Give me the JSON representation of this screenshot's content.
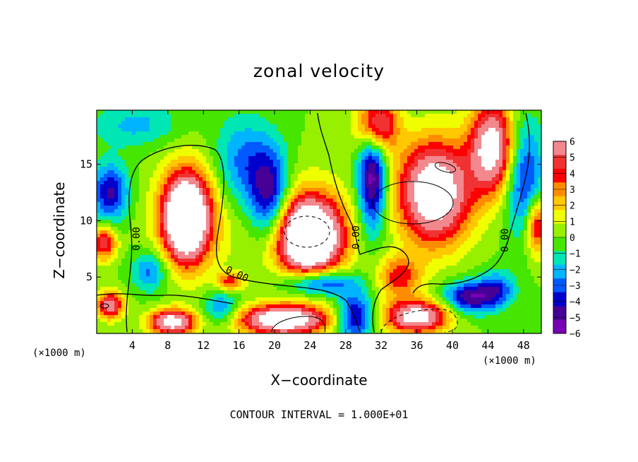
{
  "chart_data": {
    "type": "heatmap",
    "title": "zonal velocity",
    "xlabel": "X−coordinate",
    "ylabel": "Z−coordinate",
    "x_unit_left": "(×1000 m)",
    "x_unit_right": "(×1000 m)",
    "footer": "CONTOUR INTERVAL = 1.000E+01",
    "x_ticks": [
      "4",
      "8",
      "12",
      "16",
      "20",
      "24",
      "28",
      "32",
      "36",
      "40",
      "44",
      "48"
    ],
    "y_ticks": [
      "5",
      "10",
      "15"
    ],
    "xlim": [
      0,
      50
    ],
    "ylim": [
      0,
      19.8
    ],
    "colorbar_labels": [
      "6",
      "5",
      "4",
      "3",
      "2",
      "1",
      "0",
      "−1",
      "−2",
      "−3",
      "−4",
      "−5",
      "−6"
    ],
    "colorbar_colors": [
      "#f2888e",
      "#f03232",
      "#ff0000",
      "#ff8c00",
      "#ffc800",
      "#f0ff00",
      "#96f000",
      "#46e600",
      "#00e6b4",
      "#00b4ff",
      "#005aff",
      "#0000cd",
      "#460096",
      "#7800b4"
    ],
    "contour_labels": [
      "0.00",
      "0.00",
      "0.00",
      "0.00"
    ],
    "field_features": [
      {
        "x": 10,
        "z": 10.2,
        "amp": 9,
        "sx": 2.2,
        "sz": 3.4
      },
      {
        "x": 10.5,
        "z": 10.5,
        "amp": 4.5,
        "sx": 3.8,
        "sz": 4.8
      },
      {
        "x": 24,
        "z": 8.5,
        "amp": 9,
        "sx": 3.2,
        "sz": 3.0
      },
      {
        "x": 23.5,
        "z": 9,
        "amp": 4,
        "sx": 5,
        "sz": 4.5
      },
      {
        "x": 38,
        "z": 12.5,
        "amp": 9,
        "sx": 4,
        "sz": 4.5
      },
      {
        "x": 44.5,
        "z": 16.5,
        "amp": 8,
        "sx": 2.5,
        "sz": 4
      },
      {
        "x": 31.5,
        "z": 18.5,
        "amp": 7,
        "sx": 2.2,
        "sz": 2.5
      },
      {
        "x": 21,
        "z": 1.2,
        "amp": 9,
        "sx": 5,
        "sz": 1.3
      },
      {
        "x": 8.5,
        "z": 1.0,
        "amp": 8,
        "sx": 2.5,
        "sz": 1.1
      },
      {
        "x": 36,
        "z": 1.5,
        "amp": 8,
        "sx": 3.5,
        "sz": 1.4
      },
      {
        "x": 1.5,
        "z": 2.5,
        "amp": 6,
        "sx": 1.5,
        "sz": 1.2
      },
      {
        "x": 49.5,
        "z": 9.5,
        "amp": 5,
        "sx": 1.2,
        "sz": 2.5
      },
      {
        "x": 0.8,
        "z": 8.0,
        "amp": 5,
        "sx": 1.4,
        "sz": 1.5
      },
      {
        "x": 34,
        "z": 5,
        "amp": 4,
        "sx": 2.5,
        "sz": 1.8
      },
      {
        "x": 15,
        "z": 4.6,
        "amp": 4,
        "sx": 1.5,
        "sz": 0.8
      },
      {
        "x": 31,
        "z": 14,
        "amp": -6,
        "sx": 1.6,
        "sz": 5
      },
      {
        "x": 19.5,
        "z": 12,
        "amp": -5,
        "sx": 2.2,
        "sz": 4
      },
      {
        "x": 48,
        "z": 14,
        "amp": -4,
        "sx": 2.2,
        "sz": 5
      },
      {
        "x": 1.5,
        "z": 12.5,
        "amp": -4.5,
        "sx": 2.0,
        "sz": 2.5
      },
      {
        "x": 25,
        "z": 4.5,
        "amp": -5,
        "sx": 4,
        "sz": 1.2
      },
      {
        "x": 14,
        "z": 2.2,
        "amp": -3,
        "sx": 2,
        "sz": 1.5
      },
      {
        "x": 42,
        "z": 3.2,
        "amp": -5,
        "sx": 3,
        "sz": 1.4
      },
      {
        "x": 29,
        "z": 1.5,
        "amp": -5,
        "sx": 2,
        "sz": 2
      },
      {
        "x": 16.5,
        "z": 15,
        "amp": -3,
        "sx": 3.5,
        "sz": 4
      },
      {
        "x": 6,
        "z": 5.5,
        "amp": -3,
        "sx": 2,
        "sz": 1.8
      },
      {
        "x": 45,
        "z": 4,
        "amp": -3,
        "sx": 2,
        "sz": 1.5
      },
      {
        "x": 4.5,
        "z": 18.5,
        "amp": -2,
        "sx": 5,
        "sz": 2
      }
    ]
  }
}
